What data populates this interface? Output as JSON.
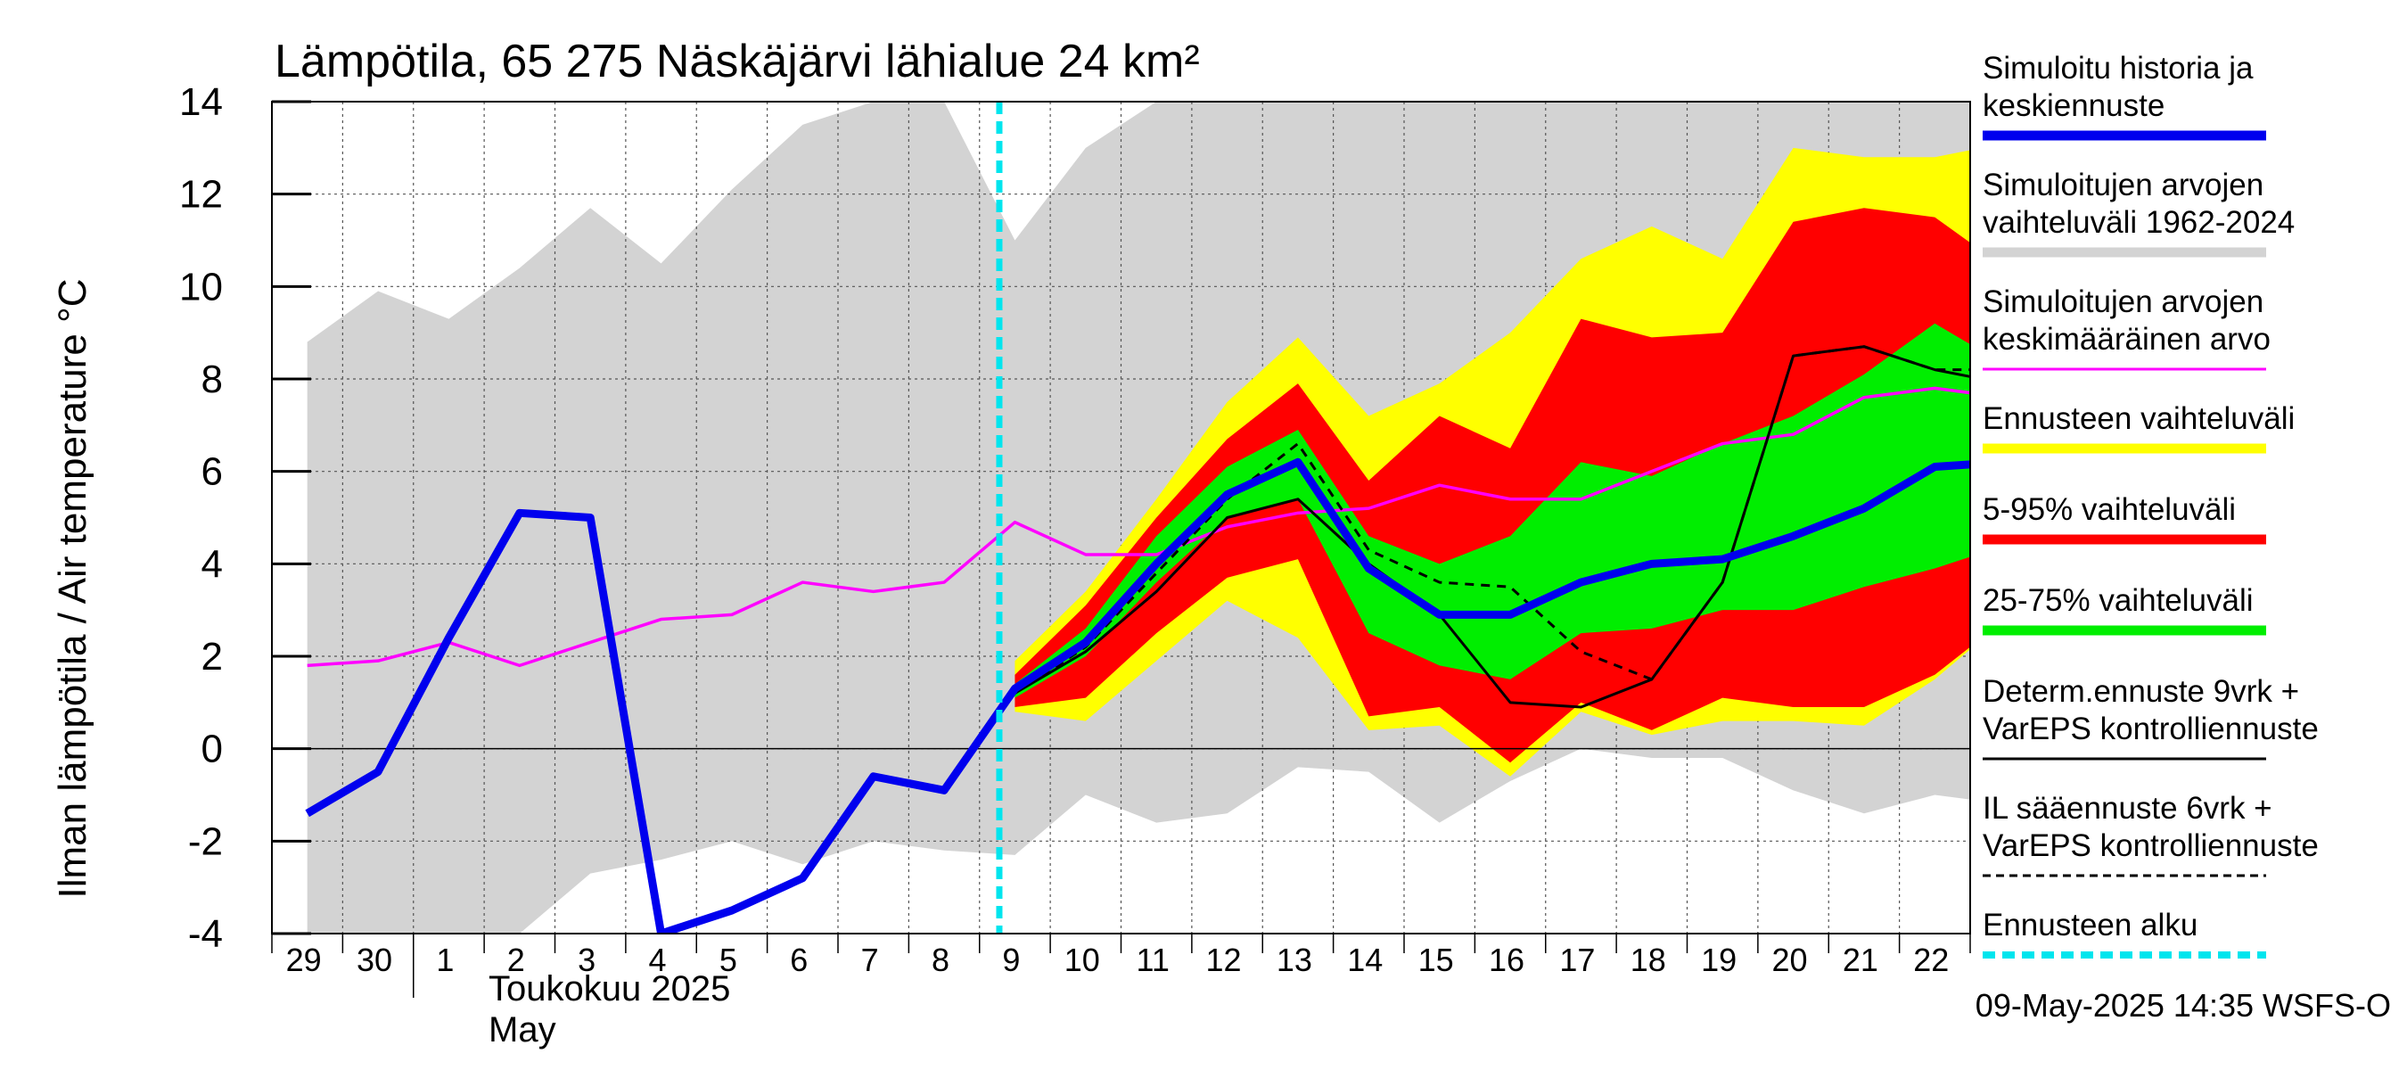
{
  "chart_data": {
    "type": "line",
    "title": "Lämpötila, 65 275 Näskäjärvi lähialue 24 km²",
    "ylabel": "Ilman lämpötila / Air temperature    °C",
    "ylim": [
      -4,
      14
    ],
    "yticks": [
      -4,
      -2,
      0,
      2,
      4,
      6,
      8,
      10,
      12,
      14
    ],
    "xlabel_month": "Toukokuu  2025",
    "xlabel_month_en": "May",
    "x_start": "2025-04-29",
    "x_end": "2025-05-23",
    "x_tick_labels": [
      "29",
      "30",
      "1",
      "2",
      "3",
      "4",
      "5",
      "6",
      "7",
      "8",
      "9",
      "10",
      "11",
      "12",
      "13",
      "14",
      "15",
      "16",
      "17",
      "18",
      "19",
      "20",
      "21",
      "22"
    ],
    "forecast_start": "2025-05-09",
    "grid": true,
    "legend_position": "right",
    "timestamp": "09-May-2025 14:35 WSFS-O",
    "colors": {
      "history": "#0000ee",
      "range": "#d3d3d3",
      "mean": "#ff00ff",
      "ensemble": "#ffff00",
      "p5_95": "#ff0000",
      "p25_75": "#00ee00",
      "determ": "#000000",
      "il": "#000000",
      "forecast_start": "#00e5ee"
    },
    "legend": [
      {
        "key": "history",
        "lines": [
          "Simuloitu historia ja",
          "keskiennuste"
        ],
        "style": "thick"
      },
      {
        "key": "range",
        "lines": [
          "Simuloitujen arvojen",
          "vaihteluväli 1962-2024"
        ],
        "style": "thick"
      },
      {
        "key": "mean",
        "lines": [
          "Simuloitujen arvojen",
          "keskimääräinen arvo"
        ],
        "style": "thin"
      },
      {
        "key": "ensemble",
        "lines": [
          "Ennusteen vaihteluväli"
        ],
        "style": "thick"
      },
      {
        "key": "p5_95",
        "lines": [
          "5-95% vaihteluväli"
        ],
        "style": "thick"
      },
      {
        "key": "p25_75",
        "lines": [
          "25-75% vaihteluväli"
        ],
        "style": "thick"
      },
      {
        "key": "determ",
        "lines": [
          "Determ.ennuste 9vrk +",
          "VarEPS kontrolliennuste"
        ],
        "style": "thin"
      },
      {
        "key": "il",
        "lines": [
          "IL sääennuste 6vrk  +",
          "  VarEPS kontrolliennuste"
        ],
        "style": "dashed"
      },
      {
        "key": "forecast_start",
        "lines": [
          "Ennusteen alku"
        ],
        "style": "dotted"
      }
    ],
    "series": {
      "range": {
        "x": [
          "2025-04-29",
          "2025-04-30",
          "2025-05-01",
          "2025-05-02",
          "2025-05-03",
          "2025-05-04",
          "2025-05-05",
          "2025-05-06",
          "2025-05-07",
          "2025-05-08",
          "2025-05-09",
          "2025-05-10",
          "2025-05-11",
          "2025-05-12",
          "2025-05-13",
          "2025-05-14",
          "2025-05-15",
          "2025-05-16",
          "2025-05-17",
          "2025-05-18",
          "2025-05-19",
          "2025-05-20",
          "2025-05-21",
          "2025-05-22",
          "2025-05-23"
        ],
        "upper": [
          8.8,
          9.9,
          9.3,
          10.4,
          11.7,
          10.5,
          12.1,
          13.5,
          15.5,
          15.5,
          11.0,
          13.0,
          14.5,
          14.5,
          14.5,
          14.5,
          14.5,
          14.5,
          14.5,
          14.5,
          14.5,
          14.5,
          14.5,
          14.5,
          14.5
        ],
        "lower": [
          -4.5,
          -4.5,
          -4.5,
          -4.5,
          -2.7,
          -2.4,
          -2.0,
          -2.5,
          -2.0,
          -2.2,
          -2.3,
          -1.0,
          -1.6,
          -1.4,
          -0.4,
          -0.5,
          -1.6,
          -0.7,
          0.0,
          -0.2,
          -0.2,
          -0.9,
          -1.4,
          -1.0,
          -1.2
        ]
      },
      "ensemble": {
        "x": [
          "2025-05-09",
          "2025-05-10",
          "2025-05-11",
          "2025-05-12",
          "2025-05-13",
          "2025-05-14",
          "2025-05-15",
          "2025-05-16",
          "2025-05-17",
          "2025-05-18",
          "2025-05-19",
          "2025-05-20",
          "2025-05-21",
          "2025-05-22",
          "2025-05-23"
        ],
        "upper": [
          1.9,
          3.4,
          5.4,
          7.5,
          8.9,
          7.2,
          7.9,
          9.0,
          10.6,
          11.3,
          10.6,
          13.0,
          12.8,
          12.8,
          13.1
        ],
        "lower": [
          0.8,
          0.6,
          1.9,
          3.2,
          2.4,
          0.4,
          0.5,
          -0.6,
          0.8,
          0.3,
          0.6,
          0.6,
          0.5,
          1.5,
          2.8
        ]
      },
      "p5_95": {
        "x": [
          "2025-05-09",
          "2025-05-10",
          "2025-05-11",
          "2025-05-12",
          "2025-05-13",
          "2025-05-14",
          "2025-05-15",
          "2025-05-16",
          "2025-05-17",
          "2025-05-18",
          "2025-05-19",
          "2025-05-20",
          "2025-05-21",
          "2025-05-22",
          "2025-05-23"
        ],
        "upper": [
          1.6,
          3.1,
          5.0,
          6.7,
          7.9,
          5.8,
          7.2,
          6.5,
          9.3,
          8.9,
          9.0,
          11.4,
          11.7,
          11.5,
          10.4
        ],
        "lower": [
          0.9,
          1.1,
          2.5,
          3.7,
          4.1,
          0.7,
          0.9,
          -0.3,
          1.0,
          0.4,
          1.1,
          0.9,
          0.9,
          1.6,
          2.8
        ]
      },
      "p25_75": {
        "x": [
          "2025-05-09",
          "2025-05-10",
          "2025-05-11",
          "2025-05-12",
          "2025-05-13",
          "2025-05-14",
          "2025-05-15",
          "2025-05-16",
          "2025-05-17",
          "2025-05-18",
          "2025-05-19",
          "2025-05-20",
          "2025-05-21",
          "2025-05-22",
          "2025-05-23"
        ],
        "upper": [
          1.4,
          2.6,
          4.6,
          6.1,
          6.9,
          4.6,
          4.0,
          4.6,
          6.2,
          5.9,
          6.6,
          7.2,
          8.1,
          9.2,
          8.3
        ],
        "lower": [
          1.1,
          2.0,
          3.6,
          5.0,
          5.4,
          2.5,
          1.8,
          1.5,
          2.5,
          2.6,
          3.0,
          3.0,
          3.5,
          3.9,
          4.4
        ]
      },
      "mean": {
        "x": [
          "2025-04-29",
          "2025-04-30",
          "2025-05-01",
          "2025-05-02",
          "2025-05-03",
          "2025-05-04",
          "2025-05-05",
          "2025-05-06",
          "2025-05-07",
          "2025-05-08",
          "2025-05-09",
          "2025-05-10",
          "2025-05-11",
          "2025-05-12",
          "2025-05-13",
          "2025-05-14",
          "2025-05-15",
          "2025-05-16",
          "2025-05-17",
          "2025-05-18",
          "2025-05-19",
          "2025-05-20",
          "2025-05-21",
          "2025-05-22",
          "2025-05-23"
        ],
        "y": [
          1.8,
          1.9,
          2.3,
          1.8,
          2.3,
          2.8,
          2.9,
          3.6,
          3.4,
          3.6,
          4.9,
          4.2,
          4.2,
          4.8,
          5.1,
          5.2,
          5.7,
          5.4,
          5.4,
          6.0,
          6.6,
          6.8,
          7.6,
          7.8,
          7.6
        ]
      },
      "determ": {
        "x": [
          "2025-05-07",
          "2025-05-08",
          "2025-05-09",
          "2025-05-10",
          "2025-05-11",
          "2025-05-12",
          "2025-05-13",
          "2025-05-14",
          "2025-05-15",
          "2025-05-16",
          "2025-05-17",
          "2025-05-18",
          "2025-05-19",
          "2025-05-20",
          "2025-05-21",
          "2025-05-22",
          "2025-05-23"
        ],
        "y": [
          -0.6,
          -0.9,
          1.2,
          2.1,
          3.4,
          5.0,
          5.4,
          4.0,
          2.9,
          1.0,
          0.9,
          1.5,
          3.6,
          8.5,
          8.7,
          8.2,
          7.9
        ]
      },
      "il": {
        "x": [
          "2025-05-07",
          "2025-05-08",
          "2025-05-09",
          "2025-05-10",
          "2025-05-11",
          "2025-05-12",
          "2025-05-13",
          "2025-05-14",
          "2025-05-15",
          "2025-05-16",
          "2025-05-17",
          "2025-05-18",
          "2025-05-19",
          "2025-05-20",
          "2025-05-21",
          "2025-05-22",
          "2025-05-23"
        ],
        "y": [
          -0.6,
          -0.9,
          1.2,
          2.2,
          3.8,
          5.4,
          6.6,
          4.3,
          3.6,
          3.5,
          2.1,
          1.5,
          3.6,
          8.5,
          8.7,
          8.2,
          8.2
        ]
      },
      "history": {
        "x": [
          "2025-04-29",
          "2025-04-30",
          "2025-05-01",
          "2025-05-02",
          "2025-05-03",
          "2025-05-04",
          "2025-05-05",
          "2025-05-06",
          "2025-05-07",
          "2025-05-08",
          "2025-05-09",
          "2025-05-10",
          "2025-05-11",
          "2025-05-12",
          "2025-05-13",
          "2025-05-14",
          "2025-05-15",
          "2025-05-16",
          "2025-05-17",
          "2025-05-18",
          "2025-05-19",
          "2025-05-20",
          "2025-05-21",
          "2025-05-22",
          "2025-05-23"
        ],
        "y": [
          -1.4,
          -0.5,
          2.4,
          5.1,
          5.0,
          -4.0,
          -3.5,
          -2.8,
          -0.6,
          -0.9,
          1.3,
          2.3,
          4.0,
          5.5,
          6.2,
          3.9,
          2.9,
          2.9,
          3.6,
          4.0,
          4.1,
          4.6,
          5.2,
          6.1,
          6.2
        ]
      }
    }
  }
}
